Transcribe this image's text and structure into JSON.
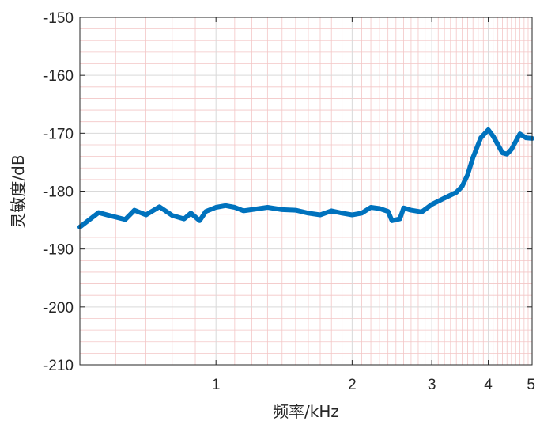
{
  "chart_data": {
    "type": "line",
    "title": "",
    "xlabel": "频率/kHz",
    "ylabel": "灵敏度/dB",
    "xscale": "log",
    "xlim": [
      0.5,
      5
    ],
    "ylim": [
      -210,
      -150
    ],
    "xticks": [
      1,
      2,
      3,
      4,
      5
    ],
    "xtick_labels": [
      "1",
      "2",
      "3",
      "4",
      "5"
    ],
    "yticks": [
      -210,
      -200,
      -190,
      -180,
      -170,
      -160,
      -150
    ],
    "ytick_labels": [
      "-210",
      "-200",
      "-190",
      "-180",
      "-170",
      "-160",
      "-150"
    ],
    "grid": true,
    "minor_grid": true,
    "series": [
      {
        "color": "#0072BD",
        "x": [
          0.5,
          0.55,
          0.58,
          0.63,
          0.66,
          0.7,
          0.75,
          0.8,
          0.85,
          0.88,
          0.92,
          0.95,
          1.0,
          1.05,
          1.1,
          1.15,
          1.2,
          1.3,
          1.4,
          1.5,
          1.6,
          1.7,
          1.8,
          1.9,
          2.0,
          2.1,
          2.2,
          2.3,
          2.4,
          2.45,
          2.55,
          2.6,
          2.7,
          2.85,
          3.0,
          3.2,
          3.4,
          3.5,
          3.6,
          3.7,
          3.85,
          4.0,
          4.1,
          4.3,
          4.4,
          4.5,
          4.7,
          4.85,
          5.0
        ],
        "y": [
          -186.2,
          -183.7,
          -184.2,
          -184.9,
          -183.3,
          -184.1,
          -182.7,
          -184.2,
          -184.8,
          -183.8,
          -185.1,
          -183.5,
          -182.8,
          -182.5,
          -182.8,
          -183.4,
          -183.2,
          -182.8,
          -183.2,
          -183.3,
          -183.8,
          -184.1,
          -183.4,
          -183.8,
          -184.1,
          -183.8,
          -182.8,
          -183.0,
          -183.5,
          -185.1,
          -184.8,
          -182.9,
          -183.3,
          -183.6,
          -182.3,
          -181.2,
          -180.2,
          -179.2,
          -177.2,
          -174.2,
          -170.8,
          -169.4,
          -170.5,
          -173.4,
          -173.6,
          -172.8,
          -170.1,
          -170.8,
          -170.9
        ]
      }
    ]
  }
}
